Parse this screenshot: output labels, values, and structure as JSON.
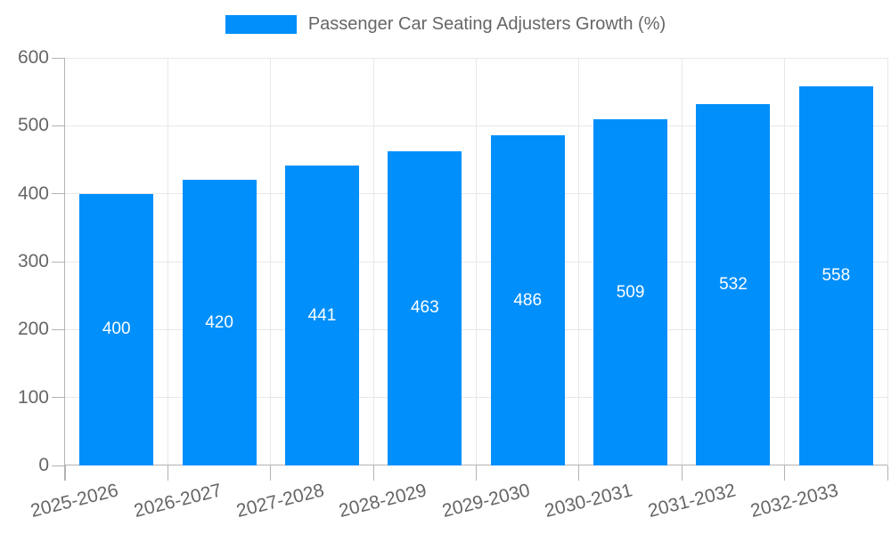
{
  "legend": {
    "label": "Passenger Car Seating Adjusters Growth (%)"
  },
  "colors": {
    "bar": "#008ffb",
    "axis_line": "#b3b3b3",
    "grid": "#e8e8e8",
    "axis_text": "#666666",
    "value_text": "#ffffff",
    "background": "#ffffff"
  },
  "chart_data": {
    "type": "bar",
    "title": "Passenger Car Seating Adjusters Growth (%)",
    "categories": [
      "2025-2026",
      "2026-2027",
      "2027-2028",
      "2028-2029",
      "2029-2030",
      "2030-2031",
      "2031-2032",
      "2032-2033"
    ],
    "series": [
      {
        "name": "Passenger Car Seating Adjusters Growth (%)",
        "values": [
          400,
          420,
          441,
          463,
          486,
          509,
          532,
          558
        ]
      }
    ],
    "xlabel": "",
    "ylabel": "",
    "ylim": [
      0,
      600
    ],
    "yticks": [
      0,
      100,
      200,
      300,
      400,
      500,
      600
    ],
    "grid": true,
    "legend_position": "top",
    "value_labels": "inside-center",
    "x_label_rotation_deg": -14
  }
}
